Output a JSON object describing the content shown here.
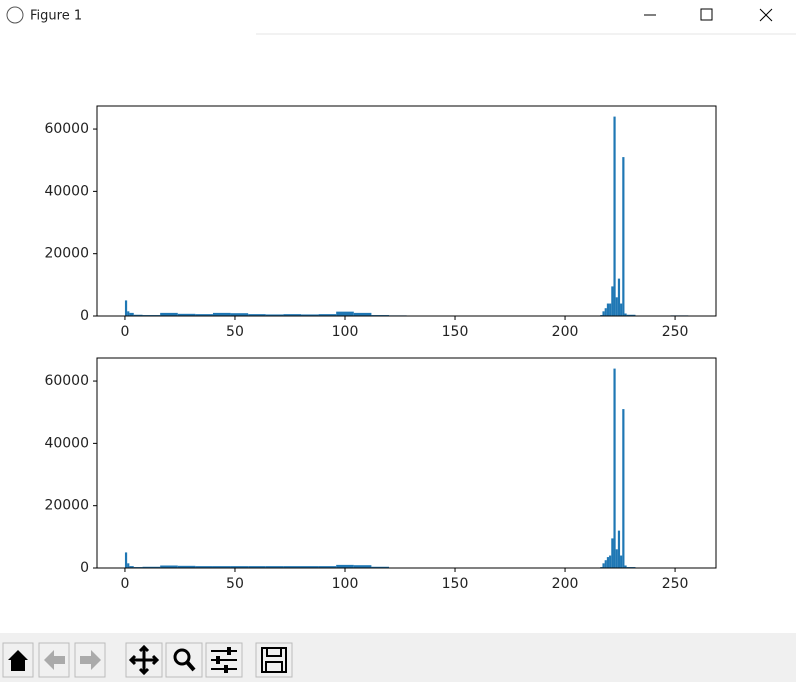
{
  "window": {
    "title": "Figure 1"
  },
  "chart_data": [
    {
      "type": "histogram",
      "color": "#1f77b4",
      "bins": [
        0,
        1,
        2,
        4,
        8,
        16,
        24,
        32,
        40,
        48,
        56,
        64,
        72,
        80,
        88,
        96,
        104,
        112,
        120,
        128,
        136,
        144,
        152,
        160,
        168,
        176,
        184,
        192,
        200,
        208,
        216,
        217,
        218,
        219,
        220,
        221,
        222,
        223,
        224,
        225,
        226,
        227,
        228,
        232,
        240,
        248,
        256
      ],
      "values": [
        5000,
        1500,
        1000,
        400,
        300,
        1000,
        700,
        600,
        1000,
        900,
        600,
        500,
        600,
        500,
        600,
        1400,
        1000,
        300,
        200,
        150,
        100,
        100,
        100,
        100,
        100,
        100,
        100,
        100,
        100,
        100,
        300,
        1500,
        2500,
        4000,
        4000,
        9500,
        64000,
        6000,
        12000,
        4000,
        51000,
        800,
        400,
        100,
        100,
        200
      ],
      "xlim": [
        -12.7,
        268.6
      ],
      "ylim": [
        0,
        67400
      ],
      "xticks": [
        0,
        50,
        100,
        150,
        200,
        250
      ],
      "yticks": [
        0,
        20000,
        40000,
        60000
      ]
    },
    {
      "type": "histogram",
      "color": "#1f77b4",
      "bins": [
        0,
        1,
        2,
        4,
        8,
        16,
        24,
        32,
        40,
        48,
        56,
        64,
        72,
        80,
        88,
        96,
        104,
        112,
        120,
        128,
        136,
        144,
        152,
        160,
        168,
        176,
        184,
        192,
        200,
        208,
        216,
        217,
        218,
        219,
        220,
        221,
        222,
        223,
        224,
        225,
        226,
        227,
        228,
        232,
        240,
        248,
        256
      ],
      "values": [
        5000,
        1500,
        600,
        300,
        400,
        800,
        700,
        600,
        600,
        600,
        600,
        600,
        600,
        600,
        600,
        1000,
        900,
        400,
        0,
        0,
        0,
        0,
        0,
        0,
        0,
        0,
        0,
        0,
        0,
        0,
        300,
        1500,
        2500,
        3500,
        4000,
        9500,
        64000,
        6000,
        12000,
        4000,
        51000,
        800,
        300,
        0,
        0,
        0
      ],
      "xlim": [
        -12.7,
        268.6
      ],
      "ylim": [
        0,
        67400
      ],
      "xticks": [
        0,
        50,
        100,
        150,
        200,
        250
      ],
      "yticks": [
        0,
        20000,
        40000,
        60000
      ]
    }
  ]
}
